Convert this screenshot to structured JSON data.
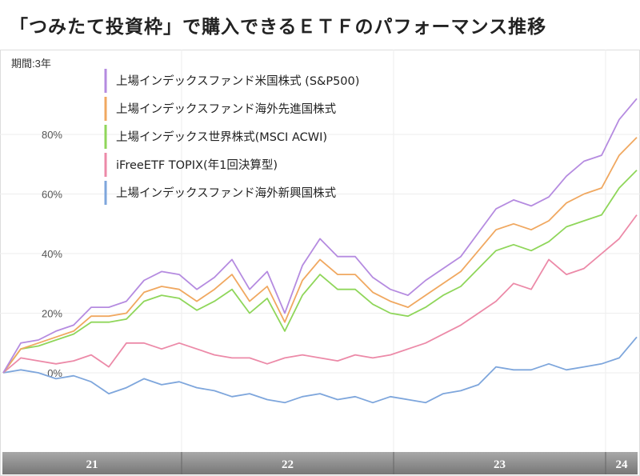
{
  "title": "「つみたて投資枠」で購入できるＥＴＦのパフォーマンス推移",
  "chart_data": {
    "type": "line",
    "title": "「つみたて投資枠」で購入できるＥＴＦのパフォーマンス推移",
    "period_label": "期間:3年",
    "x": [
      "2021-02",
      "2021-03",
      "2021-04",
      "2021-05",
      "2021-06",
      "2021-07",
      "2021-08",
      "2021-09",
      "2021-10",
      "2021-11",
      "2021-12",
      "2022-01",
      "2022-02",
      "2022-03",
      "2022-04",
      "2022-05",
      "2022-06",
      "2022-07",
      "2022-08",
      "2022-09",
      "2022-10",
      "2022-11",
      "2022-12",
      "2023-01",
      "2023-02",
      "2023-03",
      "2023-04",
      "2023-05",
      "2023-06",
      "2023-07",
      "2023-08",
      "2023-09",
      "2023-10",
      "2023-11",
      "2023-12",
      "2024-01",
      "2024-02"
    ],
    "x_tick_labels": [
      "21",
      "22",
      "23",
      "24"
    ],
    "y_ticks": [
      {
        "v": 0,
        "label": "0%"
      },
      {
        "v": 20,
        "label": "20%"
      },
      {
        "v": 40,
        "label": "40%"
      },
      {
        "v": 60,
        "label": "60%"
      },
      {
        "v": 80,
        "label": "80%"
      }
    ],
    "ylim": [
      -20,
      110
    ],
    "ylabel": "",
    "xlabel": "",
    "legend_position": "top-left",
    "series": [
      {
        "name": "上場インデックスファンド米国株式 (S&P500)",
        "color": "#b58be0",
        "values": [
          0,
          10,
          11,
          14,
          16,
          22,
          22,
          24,
          31,
          34,
          33,
          28,
          32,
          38,
          28,
          34,
          20,
          36,
          45,
          39,
          39,
          32,
          28,
          26,
          31,
          35,
          39,
          47,
          55,
          58,
          56,
          59,
          66,
          71,
          73,
          85,
          92
        ]
      },
      {
        "name": "上場インデックスファンド海外先進国株式",
        "color": "#f0a860",
        "values": [
          0,
          8,
          10,
          12,
          14,
          19,
          19,
          20,
          27,
          29,
          28,
          24,
          28,
          33,
          24,
          29,
          17,
          31,
          38,
          33,
          33,
          27,
          24,
          22,
          26,
          30,
          34,
          41,
          48,
          50,
          48,
          51,
          57,
          60,
          62,
          73,
          79
        ]
      },
      {
        "name": "上場インデックス世界株式(MSCI ACWI)",
        "color": "#8fd65a",
        "values": [
          0,
          8,
          9,
          11,
          13,
          17,
          17,
          18,
          24,
          26,
          25,
          21,
          24,
          28,
          20,
          25,
          14,
          26,
          33,
          28,
          28,
          23,
          20,
          19,
          22,
          26,
          29,
          35,
          41,
          43,
          41,
          44,
          49,
          51,
          53,
          62,
          68
        ]
      },
      {
        "name": "iFreeETF TOPIX(年1回決算型)",
        "color": "#ec8aa8",
        "values": [
          0,
          5,
          4,
          3,
          4,
          6,
          2,
          10,
          10,
          8,
          10,
          8,
          6,
          5,
          5,
          3,
          5,
          6,
          5,
          4,
          6,
          5,
          6,
          8,
          10,
          13,
          16,
          20,
          24,
          30,
          28,
          38,
          33,
          35,
          40,
          45,
          53
        ]
      },
      {
        "name": "上場インデックスファンド海外新興国株式",
        "color": "#7ea6dc",
        "values": [
          0,
          1,
          0,
          -2,
          -1,
          -3,
          -7,
          -5,
          -2,
          -4,
          -3,
          -5,
          -6,
          -8,
          -7,
          -9,
          -10,
          -8,
          -7,
          -9,
          -8,
          -10,
          -8,
          -9,
          -10,
          -7,
          -6,
          -4,
          2,
          1,
          1,
          3,
          1,
          2,
          3,
          5,
          12
        ]
      }
    ]
  }
}
